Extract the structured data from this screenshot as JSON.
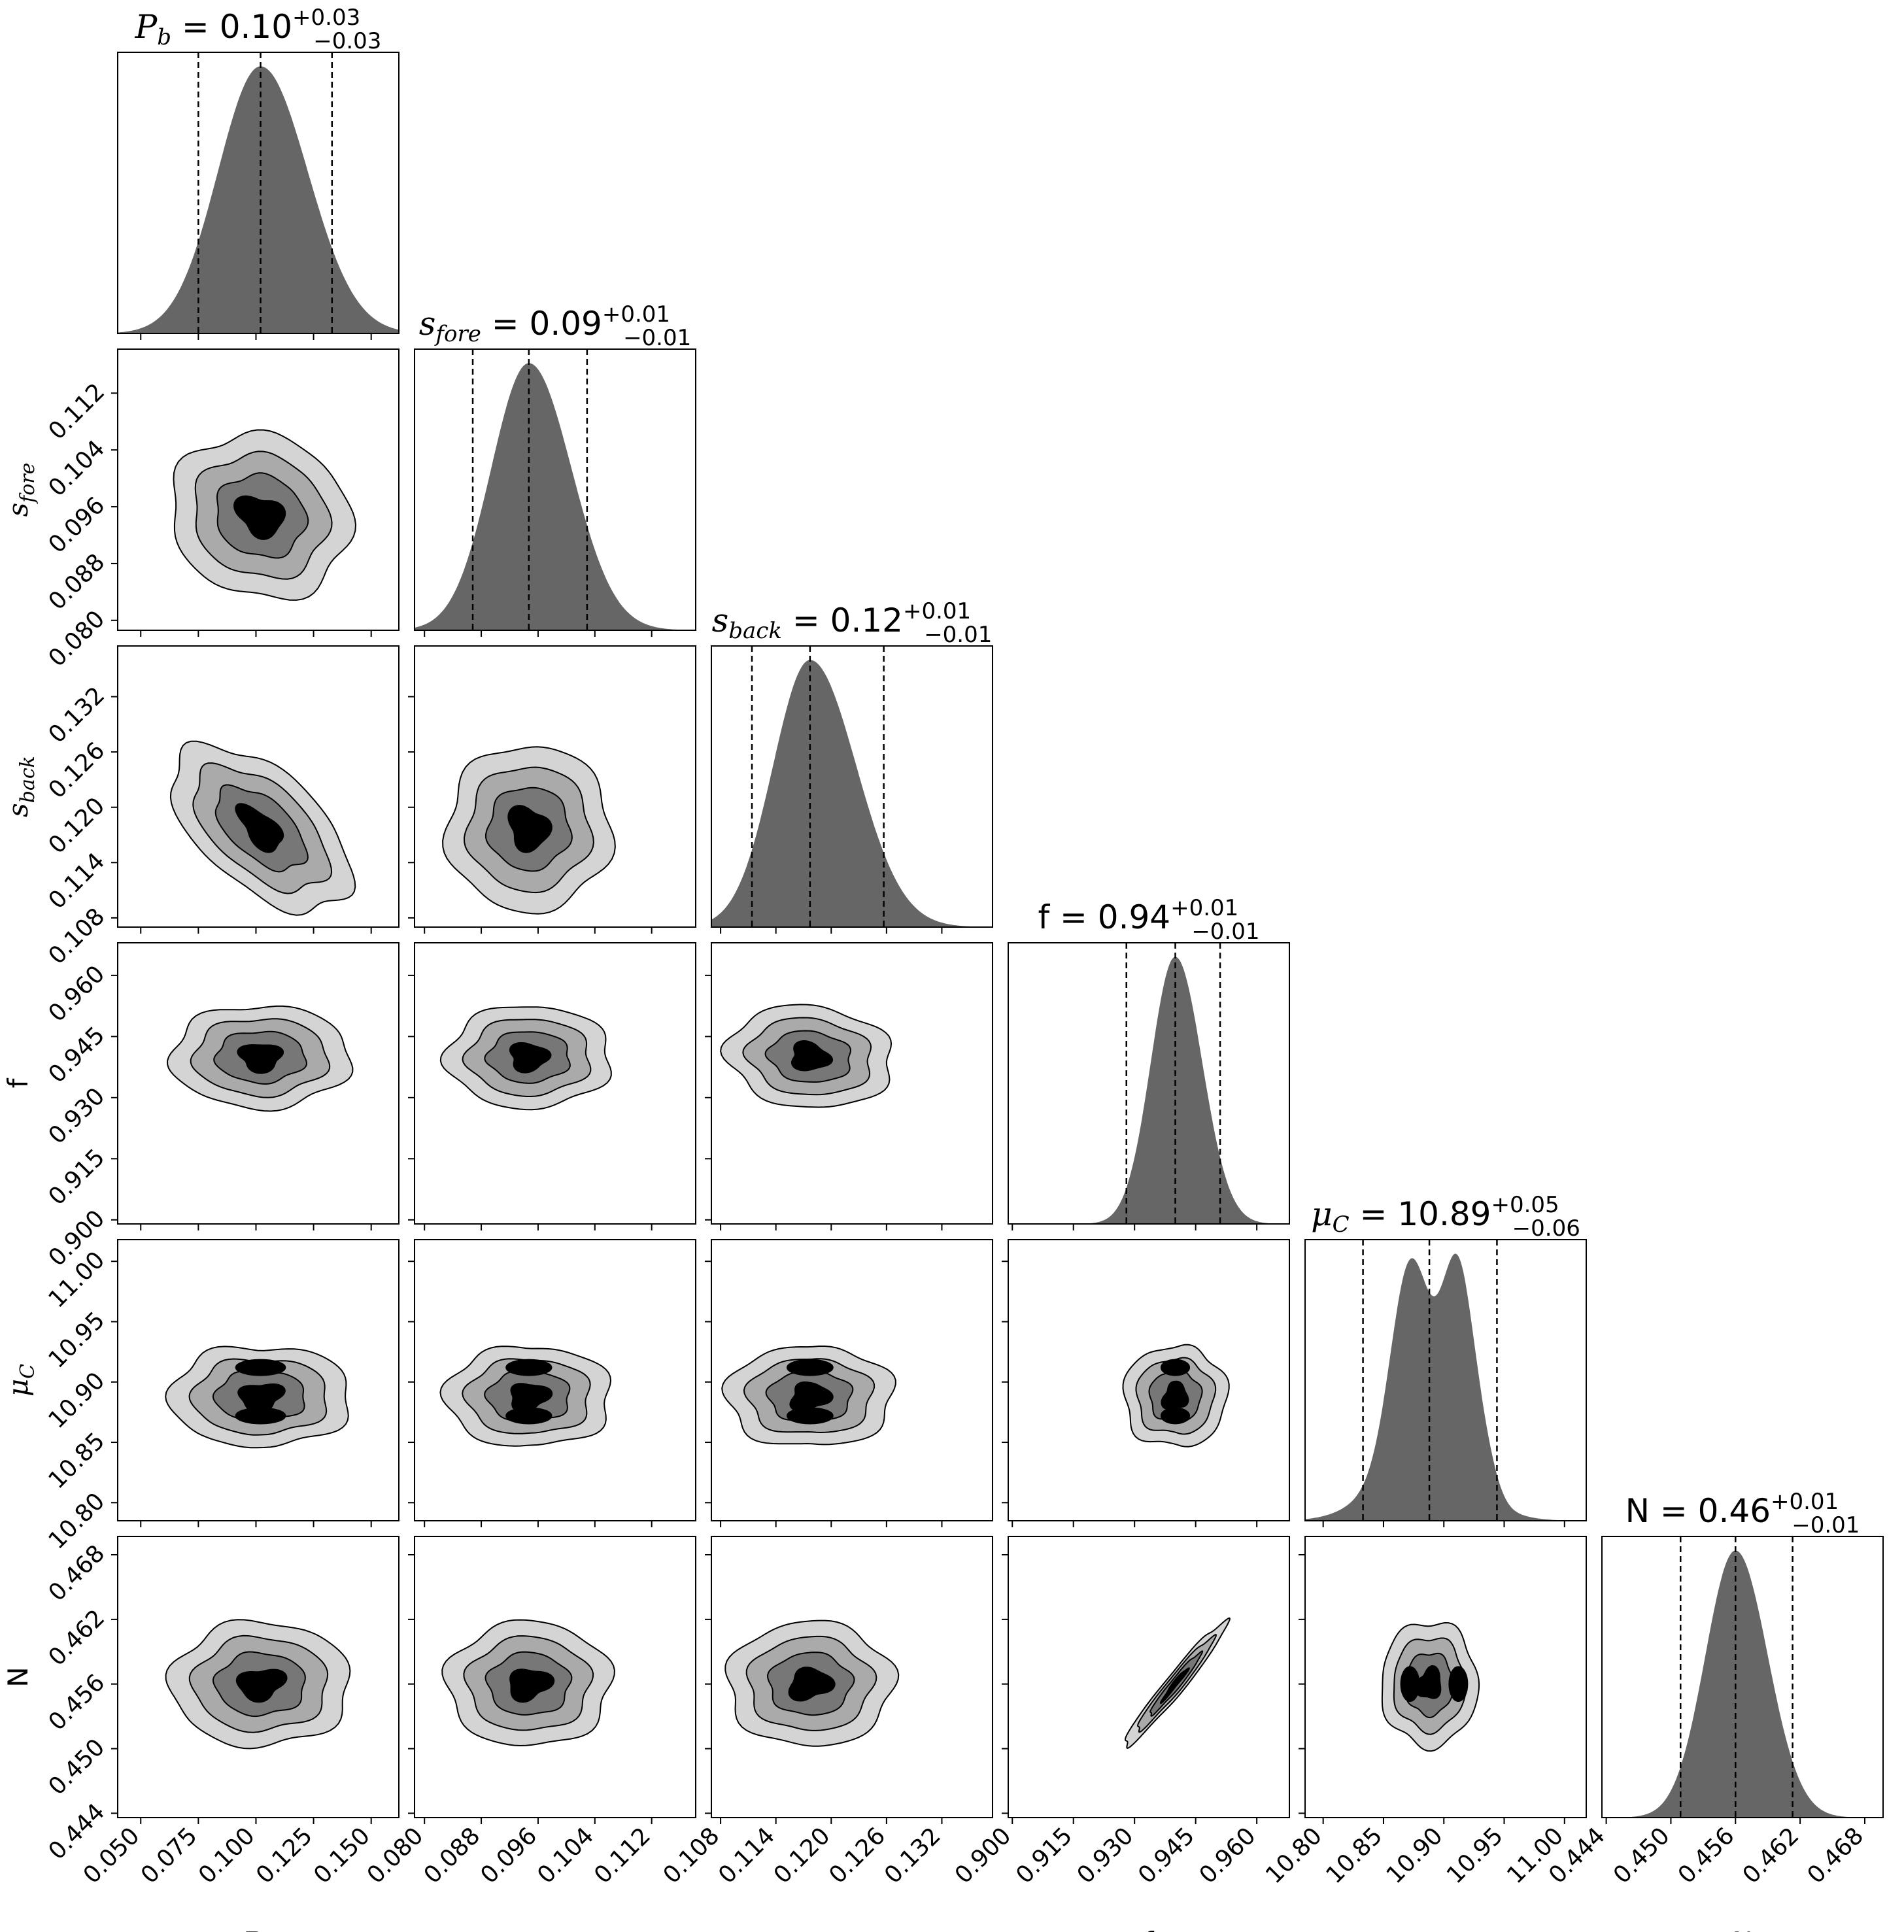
{
  "chart_data": {
    "type": "corner",
    "parameters": [
      {
        "id": "Pb",
        "label_base": "P",
        "label_sub": "b",
        "italic": true,
        "title": {
          "value": "0.10",
          "plus": "+0.03",
          "minus": "−0.03"
        },
        "ticks": [
          "0.050",
          "0.075",
          "0.100",
          "0.125",
          "0.150"
        ],
        "range": [
          0.04,
          0.162
        ],
        "quantiles": [
          0.075,
          0.102,
          0.133
        ],
        "mode": "unimodal",
        "mean": 0.102,
        "sd": 0.0195,
        "sd_left": 0.0185,
        "sd_right": 0.0205
      },
      {
        "id": "sfore",
        "label_base": "s",
        "label_sub": "fore",
        "italic": true,
        "title": {
          "value": "0.09",
          "plus": "+0.01",
          "minus": "−0.01"
        },
        "ticks": [
          "0.080",
          "0.088",
          "0.096",
          "0.104",
          "0.112"
        ],
        "range": [
          0.0786,
          0.1182
        ],
        "quantiles": [
          0.0868,
          0.0947,
          0.1029
        ],
        "mode": "unimodal",
        "mean": 0.0947,
        "sd": 0.0058,
        "sd_left": 0.0053,
        "sd_right": 0.006
      },
      {
        "id": "sback",
        "label_base": "s",
        "label_sub": "back",
        "italic": true,
        "title": {
          "value": "0.12",
          "plus": "+0.01",
          "minus": "−0.01"
        },
        "ticks": [
          "0.108",
          "0.114",
          "0.120",
          "0.126",
          "0.132"
        ],
        "range": [
          0.107,
          0.1375
        ],
        "quantiles": [
          0.1114,
          0.1177,
          0.1257
        ],
        "mode": "unimodal",
        "mean": 0.1177,
        "sd": 0.0045,
        "sd_left": 0.004,
        "sd_right": 0.005
      },
      {
        "id": "f",
        "label_base": "f",
        "label_sub": "",
        "italic": false,
        "title": {
          "value": "0.94",
          "plus": "+0.01",
          "minus": "−0.01"
        },
        "ticks": [
          "0.900",
          "0.915",
          "0.930",
          "0.945",
          "0.960"
        ],
        "range": [
          0.899,
          0.968
        ],
        "quantiles": [
          0.928,
          0.94,
          0.951
        ],
        "mode": "unimodal",
        "mean": 0.94,
        "sd": 0.0063,
        "sd_left": 0.006,
        "sd_right": 0.0066
      },
      {
        "id": "muC",
        "label_base": "μ",
        "label_sub": "C",
        "italic": true,
        "title": {
          "value": "10.89",
          "plus": "+0.05",
          "minus": "−0.06"
        },
        "ticks": [
          "10.80",
          "10.85",
          "10.90",
          "10.95",
          "11.00"
        ],
        "range": [
          10.785,
          11.018
        ],
        "quantiles": [
          10.833,
          10.888,
          10.944
        ],
        "mode": "bimodal",
        "components": [
          {
            "mean": 10.872,
            "sd": 0.016,
            "weight": 0.95
          },
          {
            "mean": 10.912,
            "sd": 0.0135,
            "weight": 1.0
          },
          {
            "mean": 10.884,
            "sd": 0.036,
            "weight": 0.35
          },
          {
            "mean": 10.935,
            "sd": 0.01,
            "weight": 0.12
          }
        ]
      },
      {
        "id": "N",
        "label_base": "N",
        "label_sub": "",
        "italic": false,
        "title": {
          "value": "0.46",
          "plus": "+0.01",
          "minus": "−0.01"
        },
        "ticks": [
          "0.444",
          "0.450",
          "0.456",
          "0.462",
          "0.468"
        ],
        "range": [
          0.4436,
          0.4697
        ],
        "quantiles": [
          0.4509,
          0.456,
          0.4613
        ],
        "mode": "unimodal",
        "mean": 0.456,
        "sd": 0.0029,
        "sd_left": 0.0028,
        "sd_right": 0.003
      }
    ],
    "correlations": {
      "Pb|sback": -0.55,
      "Pb|sfore": -0.1,
      "f|N": 0.97,
      "sback|f": -0.1
    },
    "contour_levels": [
      0.5,
      1.0,
      1.5,
      2.0
    ],
    "colors": {
      "hist_fill": "#666666",
      "contour_fills": [
        "#d4d4d4",
        "#aaaaaa",
        "#777777",
        "#000000"
      ],
      "contour_line": "#000000",
      "frame": "#000000",
      "background": "#ffffff"
    }
  }
}
